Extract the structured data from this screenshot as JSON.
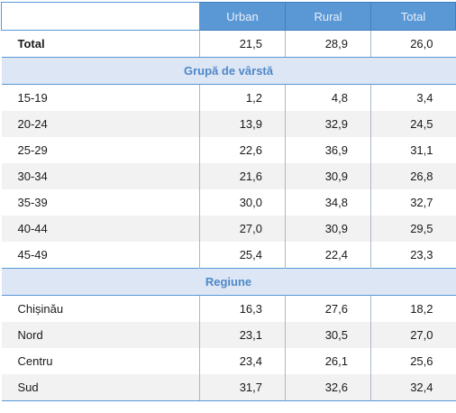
{
  "header": {
    "col1": "Urban",
    "col2": "Rural",
    "col3": "Total"
  },
  "total_row": {
    "label": "Total",
    "urban": "21,5",
    "rural": "28,9",
    "total": "26,0"
  },
  "section_age": {
    "title": "Grupă de vârstă",
    "rows": [
      {
        "label": "15-19",
        "urban": "1,2",
        "rural": "4,8",
        "total": "3,4"
      },
      {
        "label": "20-24",
        "urban": "13,9",
        "rural": "32,9",
        "total": "24,5"
      },
      {
        "label": "25-29",
        "urban": "22,6",
        "rural": "36,9",
        "total": "31,1"
      },
      {
        "label": "30-34",
        "urban": "21,6",
        "rural": "30,9",
        "total": "26,8"
      },
      {
        "label": "35-39",
        "urban": "30,0",
        "rural": "34,8",
        "total": "32,7"
      },
      {
        "label": "40-44",
        "urban": "27,0",
        "rural": "30,9",
        "total": "29,5"
      },
      {
        "label": "45-49",
        "urban": "25,4",
        "rural": "22,4",
        "total": "23,3"
      }
    ]
  },
  "section_region": {
    "title": "Regiune",
    "rows": [
      {
        "label": "Chișinău",
        "urban": "16,3",
        "rural": "27,6",
        "total": "18,2"
      },
      {
        "label": "Nord",
        "urban": "23,1",
        "rural": "30,5",
        "total": "27,0"
      },
      {
        "label": "Centru",
        "urban": "23,4",
        "rural": "26,1",
        "total": "25,6"
      },
      {
        "label": "Sud",
        "urban": "31,7",
        "rural": "32,6",
        "total": "32,4"
      }
    ]
  }
}
